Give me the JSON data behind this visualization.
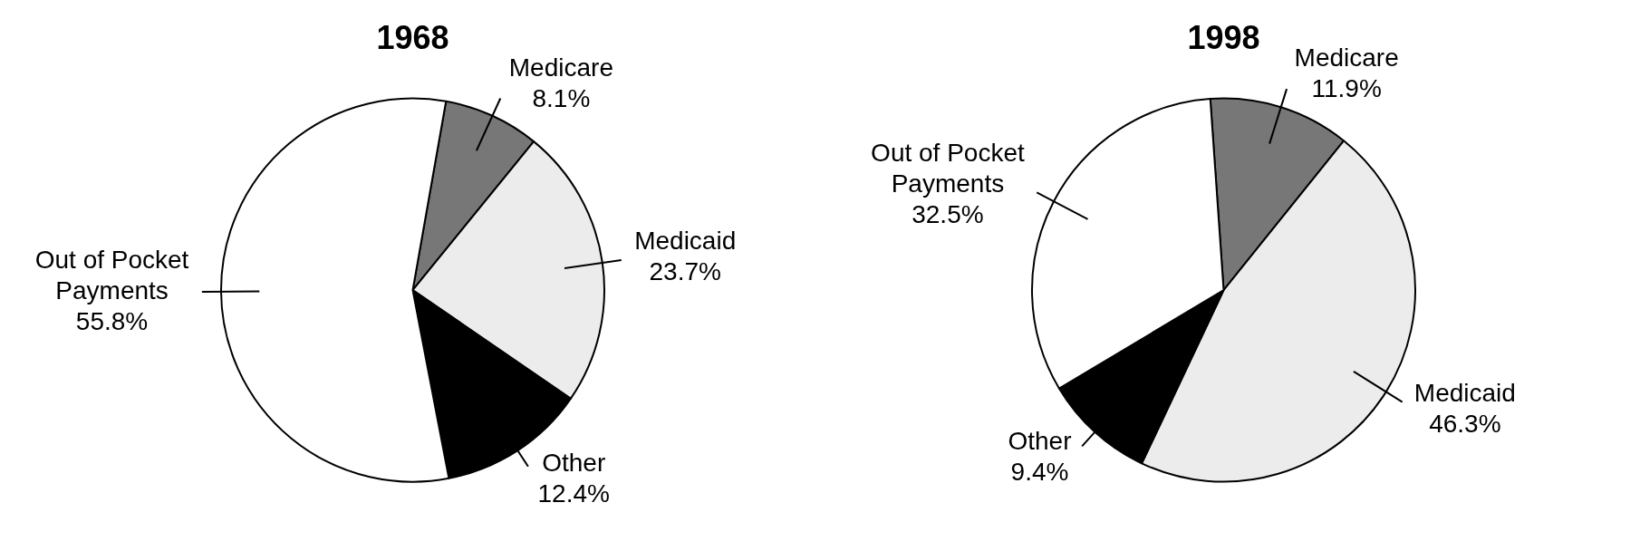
{
  "chart_data": [
    {
      "type": "pie",
      "title": "1968",
      "categories": [
        "Medicare",
        "Medicaid",
        "Other",
        "Out of Pocket Payments"
      ],
      "values": [
        8.1,
        23.7,
        12.4,
        55.8
      ],
      "value_labels": [
        "8.1%",
        "23.7%",
        "12.4%",
        "55.8%"
      ],
      "colors": [
        "#777777",
        "#ececec",
        "#000000",
        "#ffffff"
      ]
    },
    {
      "type": "pie",
      "title": "1998",
      "categories": [
        "Medicare",
        "Medicaid",
        "Other",
        "Out of Pocket Payments"
      ],
      "values": [
        11.9,
        46.3,
        9.4,
        32.5
      ],
      "value_labels": [
        "11.9%",
        "46.3%",
        "9.4%",
        "32.5%"
      ],
      "colors": [
        "#777777",
        "#ececec",
        "#000000",
        "#ffffff"
      ]
    }
  ]
}
